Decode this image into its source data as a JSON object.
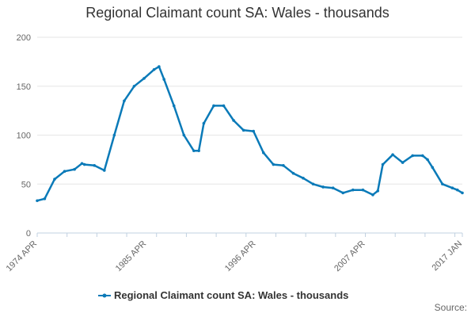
{
  "chart_data": {
    "type": "line",
    "title": "Regional Claimant count SA: Wales - thousands",
    "xlabel": "",
    "ylabel": "",
    "ylim": [
      0,
      200
    ],
    "yticks": [
      "0",
      "50",
      "100",
      "150",
      "200"
    ],
    "x_start": "1974 APR",
    "x_end": "2017 JAN",
    "xtick_labels": [
      {
        "label": "1974 APR",
        "t": 1974.25
      },
      {
        "label": "1985 APR",
        "t": 1985.25
      },
      {
        "label": "1996 APR",
        "t": 1996.25
      },
      {
        "label": "2007 APR",
        "t": 2007.25
      },
      {
        "label": "2017 JAN",
        "t": 2017.0
      }
    ],
    "legend": "bottom-center",
    "grid": "horizontal",
    "color": "#0a7ab8",
    "source": "Source:",
    "series": [
      {
        "name": "Regional Claimant count SA: Wales - thousands",
        "x": [
          "1974 APR",
          "1975 JAN",
          "1976 JAN",
          "1977 JAN",
          "1978 JAN",
          "1978 OCT",
          "1979 JAN",
          "1980 JAN",
          "1981 JAN",
          "1982 JAN",
          "1983 JAN",
          "1984 JAN",
          "1985 JAN",
          "1986 JAN",
          "1986 JUL",
          "1987 JAN",
          "1988 JAN",
          "1989 JAN",
          "1990 JAN",
          "1990 JUL",
          "1991 JAN",
          "1992 JAN",
          "1993 JAN",
          "1994 JAN",
          "1995 JAN",
          "1996 JAN",
          "1997 JAN",
          "1998 JAN",
          "1999 JAN",
          "2000 JAN",
          "2001 JAN",
          "2002 JAN",
          "2003 JAN",
          "2004 JAN",
          "2005 JAN",
          "2006 JAN",
          "2007 JAN",
          "2008 JAN",
          "2008 JUL",
          "2009 JAN",
          "2010 JAN",
          "2011 JAN",
          "2012 JAN",
          "2013 JAN",
          "2013 JUL",
          "2014 JAN",
          "2015 JAN",
          "2016 JAN",
          "2016 JUL",
          "2017 JAN"
        ],
        "t": [
          1974.25,
          1975.0,
          1976.0,
          1977.0,
          1978.0,
          1978.75,
          1979.0,
          1980.0,
          1981.0,
          1982.0,
          1983.0,
          1984.0,
          1985.0,
          1986.0,
          1986.5,
          1987.0,
          1988.0,
          1989.0,
          1990.0,
          1990.5,
          1991.0,
          1992.0,
          1993.0,
          1994.0,
          1995.0,
          1996.0,
          1997.0,
          1998.0,
          1999.0,
          2000.0,
          2001.0,
          2002.0,
          2003.0,
          2004.0,
          2005.0,
          2006.0,
          2007.0,
          2008.0,
          2008.5,
          2009.0,
          2010.0,
          2011.0,
          2012.0,
          2013.0,
          2013.5,
          2014.0,
          2015.0,
          2016.0,
          2016.5,
          2017.0
        ],
        "values": [
          33,
          35,
          55,
          63,
          65,
          71,
          70,
          69,
          64,
          100,
          135,
          150,
          158,
          167,
          170,
          157,
          130,
          100,
          84,
          84,
          112,
          130,
          130,
          115,
          105,
          104,
          82,
          70,
          69,
          61,
          56,
          50,
          47,
          46,
          41,
          44,
          44,
          39,
          43,
          70,
          80,
          72,
          79,
          79,
          75,
          67,
          50,
          46,
          44,
          41
        ]
      }
    ]
  }
}
